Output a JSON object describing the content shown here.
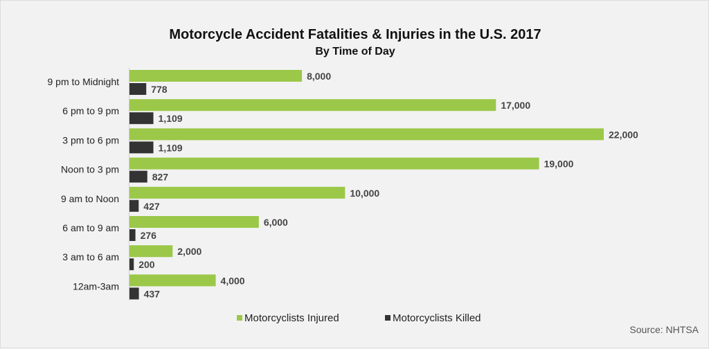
{
  "chart_data": {
    "type": "bar",
    "orientation": "horizontal",
    "title": "Motorcycle Accident Fatalities & Injuries in the U.S. 2017",
    "subtitle": "By Time of Day",
    "categories": [
      "9 pm to Midnight",
      "6 pm to 9 pm",
      "3 pm to 6 pm",
      "Noon to 3 pm",
      "9 am to Noon",
      "6 am to 9 am",
      "3 am to 6 am",
      "12am-3am"
    ],
    "series": [
      {
        "name": "Motorcyclists Injured",
        "color": "#9bc848",
        "values": [
          8000,
          17000,
          22000,
          19000,
          10000,
          6000,
          2000,
          4000
        ],
        "labels": [
          "8,000",
          "17,000",
          "22,000",
          "19,000",
          "10,000",
          "6,000",
          "2,000",
          "4,000"
        ]
      },
      {
        "name": "Motorcyclists Killed",
        "color": "#333333",
        "values": [
          778,
          1109,
          1109,
          827,
          427,
          276,
          200,
          437
        ],
        "labels": [
          "778",
          "1,109",
          "1,109",
          "827",
          "427",
          "276",
          "200",
          "437"
        ]
      }
    ],
    "xlim": [
      0,
      22000
    ],
    "grid": false,
    "legend": "bottom",
    "source": "Source: NHTSA"
  }
}
